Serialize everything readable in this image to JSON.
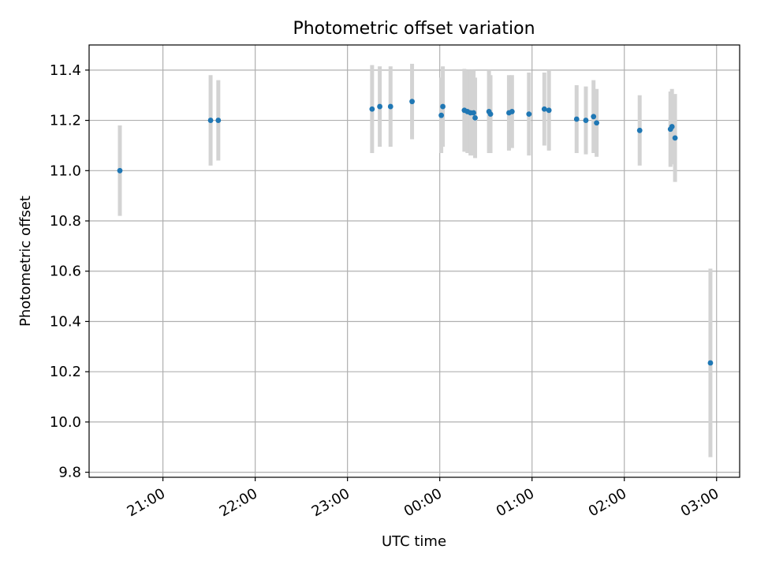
{
  "chart_data": {
    "type": "scatter",
    "title": "Photometric offset variation",
    "xlabel": "UTC time",
    "ylabel": "Photometric offset",
    "x_axis": {
      "kind": "time",
      "ticks": [
        "21:00",
        "22:00",
        "23:00",
        "00:00",
        "01:00",
        "02:00",
        "03:00"
      ],
      "range": [
        "20:12",
        "03:15"
      ]
    },
    "y_axis": {
      "range": [
        9.78,
        11.5
      ],
      "ticks": [
        "9.8",
        "10.0",
        "10.2",
        "10.4",
        "10.6",
        "10.8",
        "11.0",
        "11.2",
        "11.4"
      ]
    },
    "grid": true,
    "colors": {
      "points": "#1f77b4",
      "errorbars": "#d3d3d3"
    },
    "series": [
      {
        "points": [
          {
            "t": "20:32",
            "y": 11.0,
            "err": 0.18
          },
          {
            "t": "21:31",
            "y": 11.2,
            "err": 0.18
          },
          {
            "t": "21:36",
            "y": 11.2,
            "err": 0.16
          },
          {
            "t": "23:16",
            "y": 11.245,
            "err": 0.175
          },
          {
            "t": "23:21",
            "y": 11.255,
            "err": 0.16
          },
          {
            "t": "23:28",
            "y": 11.255,
            "err": 0.16
          },
          {
            "t": "23:42",
            "y": 11.275,
            "err": 0.15
          },
          {
            "t": "00:01",
            "y": 11.22,
            "err": 0.15
          },
          {
            "t": "00:02",
            "y": 11.255,
            "err": 0.16
          },
          {
            "t": "00:16",
            "y": 11.24,
            "err": 0.165
          },
          {
            "t": "00:18",
            "y": 11.235,
            "err": 0.165
          },
          {
            "t": "00:20",
            "y": 11.23,
            "err": 0.17
          },
          {
            "t": "00:22",
            "y": 11.23,
            "err": 0.17
          },
          {
            "t": "00:23",
            "y": 11.21,
            "err": 0.16
          },
          {
            "t": "00:32",
            "y": 11.235,
            "err": 0.165
          },
          {
            "t": "00:33",
            "y": 11.225,
            "err": 0.155
          },
          {
            "t": "00:45",
            "y": 11.23,
            "err": 0.15
          },
          {
            "t": "00:47",
            "y": 11.235,
            "err": 0.145
          },
          {
            "t": "00:58",
            "y": 11.225,
            "err": 0.165
          },
          {
            "t": "01:08",
            "y": 11.245,
            "err": 0.145
          },
          {
            "t": "01:11",
            "y": 11.24,
            "err": 0.16
          },
          {
            "t": "01:29",
            "y": 11.205,
            "err": 0.135
          },
          {
            "t": "01:35",
            "y": 11.2,
            "err": 0.135
          },
          {
            "t": "01:40",
            "y": 11.215,
            "err": 0.145
          },
          {
            "t": "01:42",
            "y": 11.19,
            "err": 0.135
          },
          {
            "t": "02:10",
            "y": 11.16,
            "err": 0.14
          },
          {
            "t": "02:30",
            "y": 11.165,
            "err": 0.15
          },
          {
            "t": "02:31",
            "y": 11.175,
            "err": 0.15
          },
          {
            "t": "02:33",
            "y": 11.13,
            "err": 0.175
          },
          {
            "t": "02:56",
            "y": 10.235,
            "err": 0.375
          }
        ]
      }
    ]
  }
}
